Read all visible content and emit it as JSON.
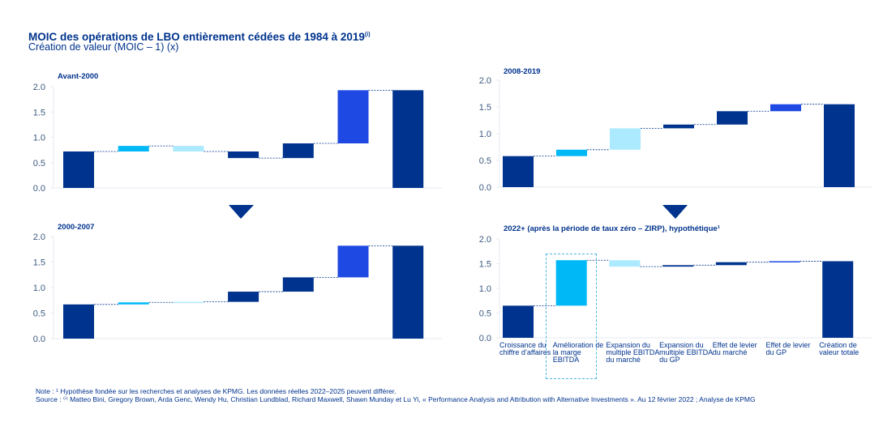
{
  "header": {
    "title": "MOIC des opérations de LBO entièrement cédées de 1984 à 2019",
    "title_sup": "(i)",
    "subtitle": "Création de valeur (MOIC – 1) (x)"
  },
  "colors": {
    "navy": "#00338D",
    "cyan": "#00B8F5",
    "light_cyan": "#ACEAFF",
    "blue": "#1E49E2",
    "connector": "#00338D",
    "axis_text": "#3d5a80"
  },
  "categories": [
    "Croissance du chiffre d’affaires",
    "Amélioration de la marge EBITDA",
    "Expansion du multiple EBITDA du marché",
    "Expansion du multiple EBITDA du GP",
    "Effet de levier du marché",
    "Effet de levier du GP",
    "Création de valeur totale"
  ],
  "chart_data": [
    {
      "type": "waterfall",
      "title": "Avant-2000",
      "ylim": [
        0,
        2.0
      ],
      "yticks": [
        "0.0",
        "0.5",
        "1.0",
        "1.5",
        "2.0"
      ],
      "categories": [
        "Croissance du chiffre d’affaires",
        "Amélioration de la marge EBITDA",
        "Expansion du multiple EBITDA du marché",
        "Expansion du multiple EBITDA du GP",
        "Effet de levier du marché",
        "Effet de levier du GP",
        "Création de valeur totale"
      ],
      "values": [
        0.72,
        0.11,
        -0.11,
        -0.13,
        0.29,
        1.05,
        1.93
      ]
    },
    {
      "type": "waterfall",
      "title": "2008-2019",
      "ylim": [
        0,
        2.0
      ],
      "yticks": [
        "0.0",
        "0.5",
        "1.0",
        "1.5",
        "2.0"
      ],
      "categories": [
        "Croissance du chiffre d’affaires",
        "Amélioration de la marge EBITDA",
        "Expansion du multiple EBITDA du marché",
        "Expansion du multiple EBITDA du GP",
        "Effet de levier du marché",
        "Effet de levier du GP",
        "Création de valeur totale"
      ],
      "values": [
        0.58,
        0.12,
        0.4,
        0.07,
        0.25,
        0.13,
        1.55
      ]
    },
    {
      "type": "waterfall",
      "title": "2000-2007",
      "ylim": [
        0,
        2.0
      ],
      "yticks": [
        "0.0",
        "0.5",
        "1.0",
        "1.5",
        "2.0"
      ],
      "categories": [
        "Croissance du chiffre d’affaires",
        "Amélioration de la marge EBITDA",
        "Expansion du multiple EBITDA du marché",
        "Expansion du multiple EBITDA du GP",
        "Effet de levier du marché",
        "Effet de levier du GP",
        "Création de valeur totale"
      ],
      "values": [
        0.67,
        0.04,
        0.01,
        0.2,
        0.28,
        0.62,
        1.82
      ]
    },
    {
      "type": "waterfall",
      "title": "2022+ (après la période de taux zéro – ZIRP), hypothétique¹",
      "ylim": [
        0,
        2.0
      ],
      "yticks": [
        "0.0",
        "0.5",
        "1.0",
        "1.5",
        "2.0"
      ],
      "categories": [
        "Croissance du chiffre d’affaires",
        "Amélioration de la marge EBITDA",
        "Expansion du multiple EBITDA du marché",
        "Expansion du multiple EBITDA du GP",
        "Effet de levier du marché",
        "Effet de levier du GP",
        "Création de valeur totale"
      ],
      "values": [
        0.65,
        0.92,
        -0.13,
        0.03,
        0.06,
        0.02,
        1.55
      ],
      "highlighted_category": "Amélioration de la marge EBITDA"
    }
  ],
  "footer": {
    "note": "Note : ¹ Hypothèse fondée sur les recherches et analyses de KPMG. Les données réelles 2022–2025 peuvent différer.",
    "source": "Source : ⁽ⁱ⁾ Matteo Bini, Gregory Brown, Arda Genc, Wendy Hu, Christian Lundblad, Richard Maxwell, Shawn Munday et Lu Yi, « Performance Analysis and Attribution with Alternative Investments ». Au 12 février 2022 ; Analyse de KPMG"
  }
}
